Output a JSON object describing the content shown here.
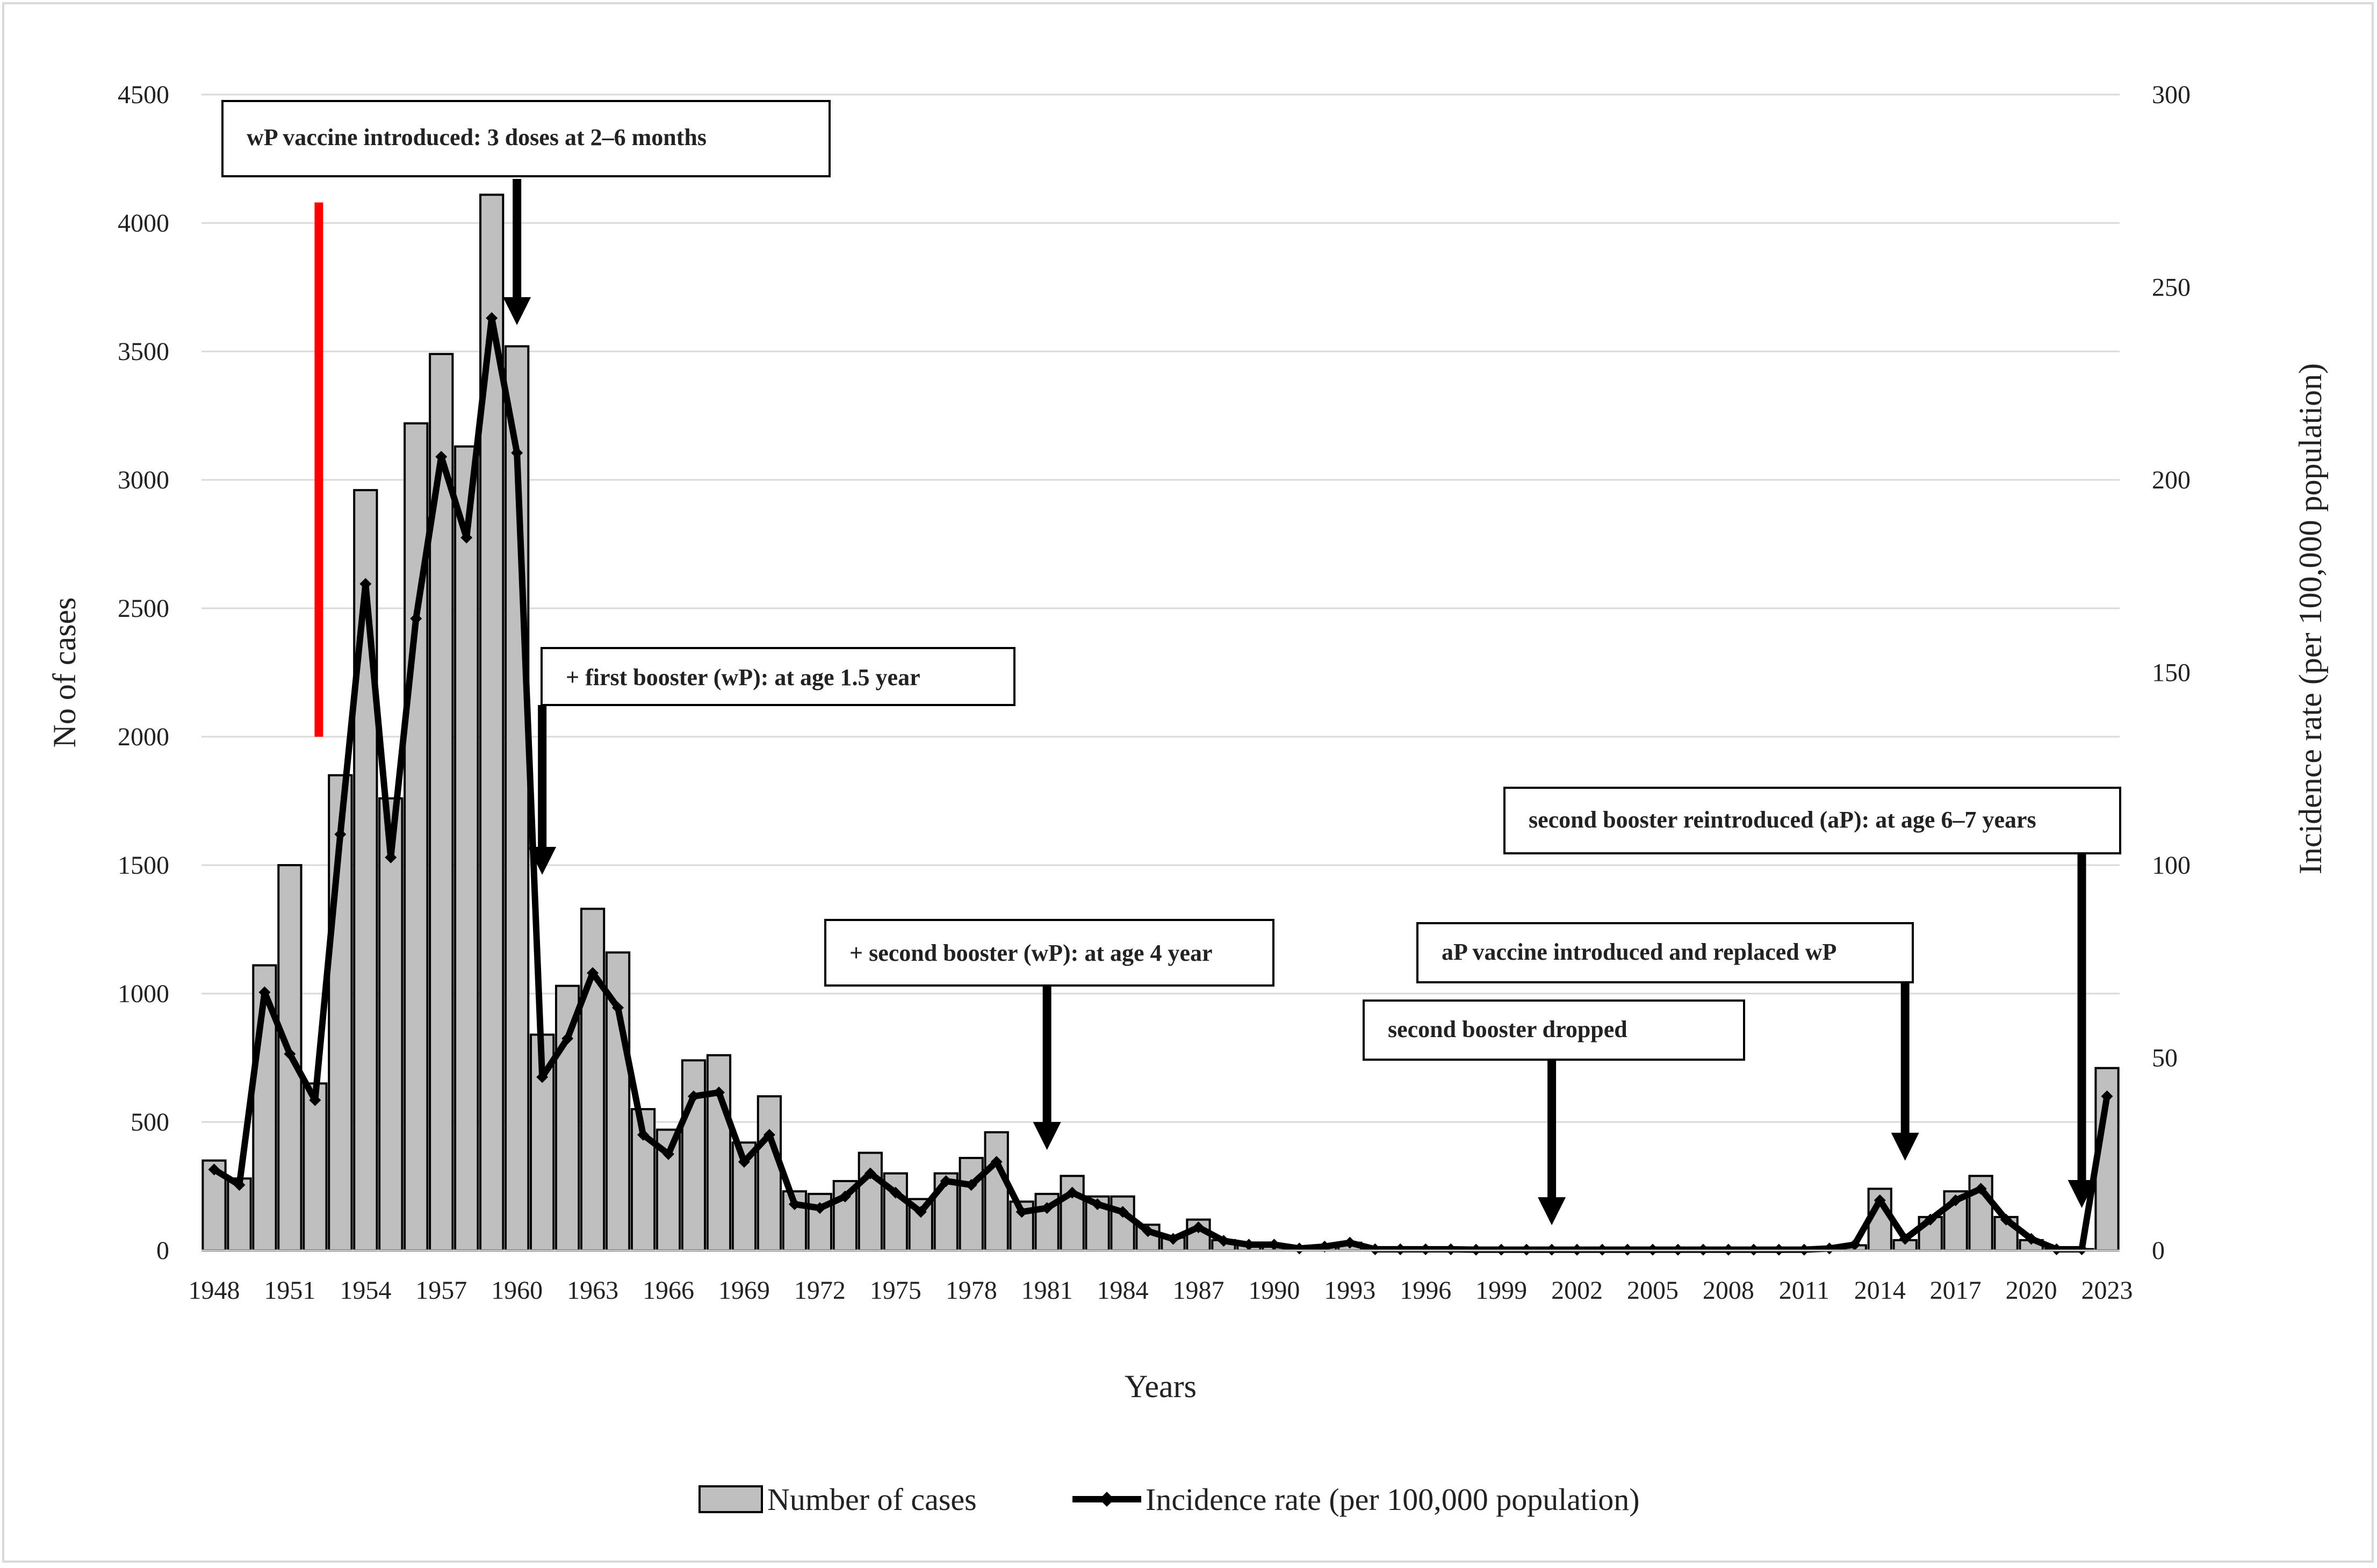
{
  "chart_data": {
    "type": "bar",
    "title": "",
    "xlabel": "Years",
    "ylabel": "No of cases",
    "y2label": "Incidence rate (per 100,000 population)",
    "ylim": [
      0,
      4500
    ],
    "y2lim": [
      0,
      300
    ],
    "yticks": [
      "0",
      "500",
      "1000",
      "1500",
      "2000",
      "2500",
      "3000",
      "3500",
      "4000",
      "4500"
    ],
    "y2ticks": [
      "0",
      "50",
      "100",
      "150",
      "200",
      "250",
      "300"
    ],
    "grid": true,
    "legend_position": "bottom-center",
    "categories": [
      "1948",
      "1949",
      "1950",
      "1951",
      "1952",
      "1953",
      "1954",
      "1955",
      "1956",
      "1957",
      "1958",
      "1959",
      "1960",
      "1961",
      "1962",
      "1963",
      "1964",
      "1965",
      "1966",
      "1967",
      "1968",
      "1969",
      "1970",
      "1971",
      "1972",
      "1973",
      "1974",
      "1975",
      "1976",
      "1977",
      "1978",
      "1979",
      "1980",
      "1981",
      "1982",
      "1983",
      "1984",
      "1985",
      "1986",
      "1987",
      "1988",
      "1989",
      "1990",
      "1991",
      "1992",
      "1993",
      "1994",
      "1995",
      "1996",
      "1997",
      "1998",
      "1999",
      "2000",
      "2001",
      "2002",
      "2003",
      "2004",
      "2005",
      "2006",
      "2007",
      "2008",
      "2009",
      "2010",
      "2011",
      "2012",
      "2013",
      "2014",
      "2015",
      "2016",
      "2017",
      "2018",
      "2019",
      "2020",
      "2021",
      "2022",
      "2023"
    ],
    "x_tick_labels": [
      "1948",
      "1951",
      "1954",
      "1957",
      "1960",
      "1963",
      "1966",
      "1969",
      "1972",
      "1975",
      "1978",
      "1981",
      "1984",
      "1987",
      "1990",
      "1993",
      "1996",
      "1999",
      "2002",
      "2005",
      "2008",
      "2011",
      "2014",
      "2017",
      "2020",
      "2023"
    ],
    "series": [
      {
        "name": "Number of cases",
        "type": "bar",
        "axis": "left",
        "color": "#bfbfbf",
        "values": [
          350,
          280,
          1110,
          1500,
          650,
          1850,
          2960,
          1760,
          3220,
          3490,
          3130,
          4110,
          3520,
          840,
          1030,
          1330,
          1160,
          550,
          470,
          740,
          760,
          420,
          600,
          230,
          220,
          270,
          380,
          300,
          200,
          300,
          360,
          460,
          190,
          220,
          290,
          210,
          210,
          100,
          50,
          120,
          40,
          20,
          20,
          10,
          20,
          30,
          5,
          5,
          5,
          5,
          3,
          3,
          3,
          3,
          3,
          3,
          3,
          3,
          3,
          3,
          3,
          3,
          3,
          3,
          3,
          20,
          240,
          40,
          130,
          230,
          290,
          130,
          40,
          5,
          5,
          710
        ]
      },
      {
        "name": "Incidence rate (per 100,000 population)",
        "type": "line",
        "axis": "right",
        "color": "#000000",
        "values": [
          21,
          17,
          67,
          51,
          39,
          108,
          173,
          102,
          164,
          206,
          185,
          242,
          207,
          45,
          55,
          72,
          63,
          30,
          25,
          40,
          41,
          23,
          30,
          12,
          11,
          14,
          20,
          15,
          10,
          18,
          17,
          23,
          10,
          11,
          15,
          12,
          10,
          5,
          3,
          6,
          2.5,
          1.5,
          1.5,
          0.5,
          1,
          2,
          0.3,
          0.3,
          0.3,
          0.3,
          0.2,
          0.2,
          0.2,
          0.2,
          0.2,
          0.2,
          0.2,
          0.2,
          0.2,
          0.2,
          0.2,
          0.2,
          0.2,
          0.2,
          0.5,
          1.5,
          13,
          3,
          8,
          13,
          16,
          8,
          3,
          0.3,
          0.3,
          40
        ]
      }
    ],
    "annotations": [
      {
        "text": "wP vaccine introduced: 3 doses at 2–6 months",
        "year": "1960",
        "arrow": true
      },
      {
        "text": "+ first booster (wP): at age 1.5 year",
        "year": "1961",
        "arrow": true
      },
      {
        "text": "+ second booster (wP): at age 4 year",
        "year": "1981",
        "arrow": true
      },
      {
        "text": "second booster dropped",
        "year": "2001",
        "arrow": true
      },
      {
        "text": "aP vaccine introduced and replaced wP",
        "year": "2015",
        "arrow": true
      },
      {
        "text": "second booster reintroduced (aP): at age 6–7 years",
        "year": "2022",
        "arrow": true
      }
    ],
    "marker_line": {
      "year": "1952",
      "color": "#ff0000",
      "from_value": 2000,
      "to_value": 4080
    }
  }
}
